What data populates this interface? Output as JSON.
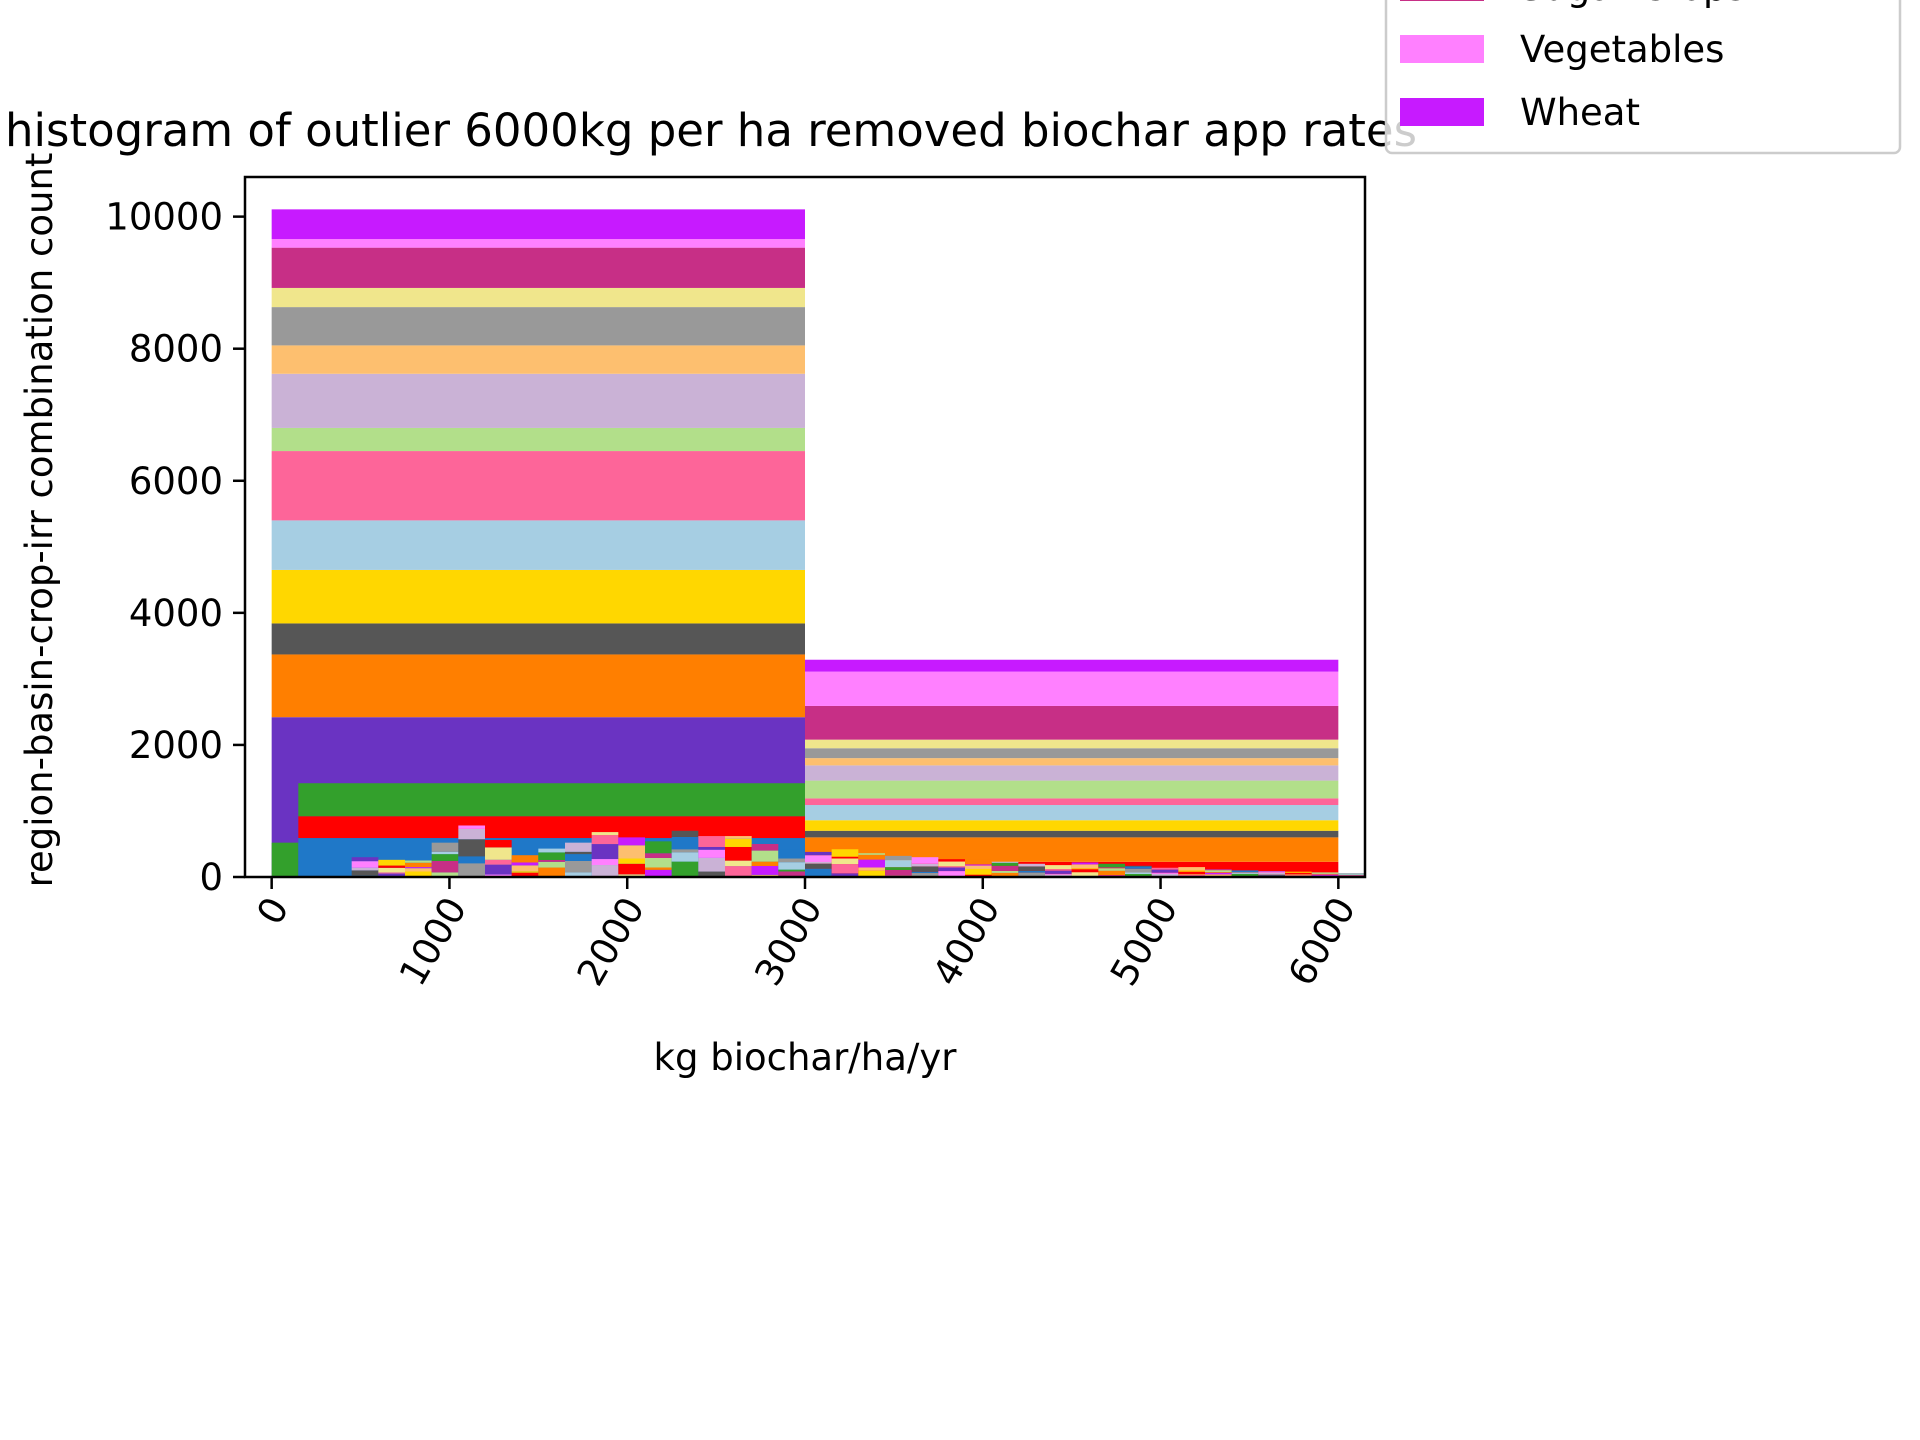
{
  "chart_data": {
    "type": "bar",
    "title": "histogram of outlier 6000kg per ha removed biochar app rates",
    "xlabel": "kg biochar/ha/yr",
    "ylabel": "region-basin-crop-irr combination count",
    "xlim": [
      -150,
      6150
    ],
    "ylim": [
      0,
      10600
    ],
    "xticks": [
      0,
      1000,
      2000,
      3000,
      4000,
      5000,
      6000
    ],
    "xtick_labels": [
      "0",
      "1000",
      "2000",
      "3000",
      "4000",
      "5000",
      "6000"
    ],
    "yticks": [
      0,
      2000,
      4000,
      6000,
      8000,
      10000
    ],
    "ytick_labels": [
      "0",
      "2000",
      "4000",
      "6000",
      "8000",
      "10000"
    ],
    "grid": false,
    "legend_position": "top-right, partly outside",
    "legend": [
      {
        "name": "Sugar Crops",
        "color": "#c72f86"
      },
      {
        "name": "Vegetables",
        "color": "#ff80ff"
      },
      {
        "name": "Wheat",
        "color": "#c71aff"
      }
    ],
    "stacked_bins": [
      {
        "x_range": [
          0,
          3000
        ],
        "segments": [
          {
            "bottom": 0,
            "top": 2420,
            "color": "#6a33c2"
          },
          {
            "bottom": 2420,
            "top": 3370,
            "color": "#ff7f00"
          },
          {
            "bottom": 3370,
            "top": 3840,
            "color": "#565656"
          },
          {
            "bottom": 3840,
            "top": 4650,
            "color": "#ffd700"
          },
          {
            "bottom": 4650,
            "top": 5400,
            "color": "#a6cee3"
          },
          {
            "bottom": 5400,
            "top": 6450,
            "color": "#fd6599"
          },
          {
            "bottom": 6450,
            "top": 6800,
            "color": "#b2df8a"
          },
          {
            "bottom": 6800,
            "top": 7620,
            "color": "#cab2d6"
          },
          {
            "bottom": 7620,
            "top": 8050,
            "color": "#fdbf6f"
          },
          {
            "bottom": 8050,
            "top": 8630,
            "color": "#999999"
          },
          {
            "bottom": 8630,
            "top": 8920,
            "color": "#f0e68c"
          },
          {
            "bottom": 8920,
            "top": 9530,
            "color": "#c72f86"
          },
          {
            "bottom": 9530,
            "top": 9660,
            "color": "#ff80ff"
          },
          {
            "bottom": 9660,
            "top": 10110,
            "color": "#c71aff"
          }
        ]
      },
      {
        "x_range": [
          3000,
          6000
        ],
        "segments": [
          {
            "bottom": 0,
            "top": 230,
            "color": "#ff0000"
          },
          {
            "bottom": 230,
            "top": 600,
            "color": "#ff7f00"
          },
          {
            "bottom": 600,
            "top": 700,
            "color": "#565656"
          },
          {
            "bottom": 700,
            "top": 860,
            "color": "#ffd700"
          },
          {
            "bottom": 860,
            "top": 1090,
            "color": "#a6cee3"
          },
          {
            "bottom": 1090,
            "top": 1190,
            "color": "#fd6599"
          },
          {
            "bottom": 1190,
            "top": 1460,
            "color": "#b2df8a"
          },
          {
            "bottom": 1460,
            "top": 1690,
            "color": "#cab2d6"
          },
          {
            "bottom": 1690,
            "top": 1800,
            "color": "#fdbf6f"
          },
          {
            "bottom": 1800,
            "top": 1950,
            "color": "#999999"
          },
          {
            "bottom": 1950,
            "top": 2080,
            "color": "#f0e68c"
          },
          {
            "bottom": 2080,
            "top": 2590,
            "color": "#c72f86"
          },
          {
            "bottom": 2590,
            "top": 3110,
            "color": "#ff80ff"
          },
          {
            "bottom": 3110,
            "top": 3290,
            "color": "#c71aff"
          }
        ]
      },
      {
        "x_range": [
          0,
          150
        ],
        "segments": [
          {
            "bottom": 0,
            "top": 520,
            "color": "#33a02c"
          }
        ]
      },
      {
        "x_range": [
          150,
          3000
        ],
        "segments": [
          {
            "bottom": 0,
            "top": 590,
            "color": "#1f78c8"
          },
          {
            "bottom": 590,
            "top": 920,
            "color": "#ff0000"
          },
          {
            "bottom": 920,
            "top": 1420,
            "color": "#33a02c"
          }
        ]
      }
    ],
    "fine_bins": {
      "x_start": 450,
      "x_end": 6150,
      "width": 150,
      "palette": [
        "#1f78c8",
        "#ff0000",
        "#33a02c",
        "#6a33c2",
        "#ff7f00",
        "#565656",
        "#ffd700",
        "#a6cee3",
        "#fd6599",
        "#b2df8a",
        "#cab2d6",
        "#fdbf6f",
        "#999999",
        "#f0e68c",
        "#c72f86",
        "#ff80ff",
        "#c71aff"
      ],
      "totals": [
        300,
        260,
        250,
        520,
        780,
        560,
        330,
        430,
        520,
        680,
        600,
        540,
        700,
        620,
        620,
        500,
        420,
        380,
        420,
        360,
        320,
        300,
        270,
        260,
        230,
        200,
        180,
        220,
        200,
        170,
        140,
        150,
        120,
        100,
        90,
        80,
        70,
        60,
        55,
        50,
        45,
        40,
        40,
        35
      ]
    }
  }
}
